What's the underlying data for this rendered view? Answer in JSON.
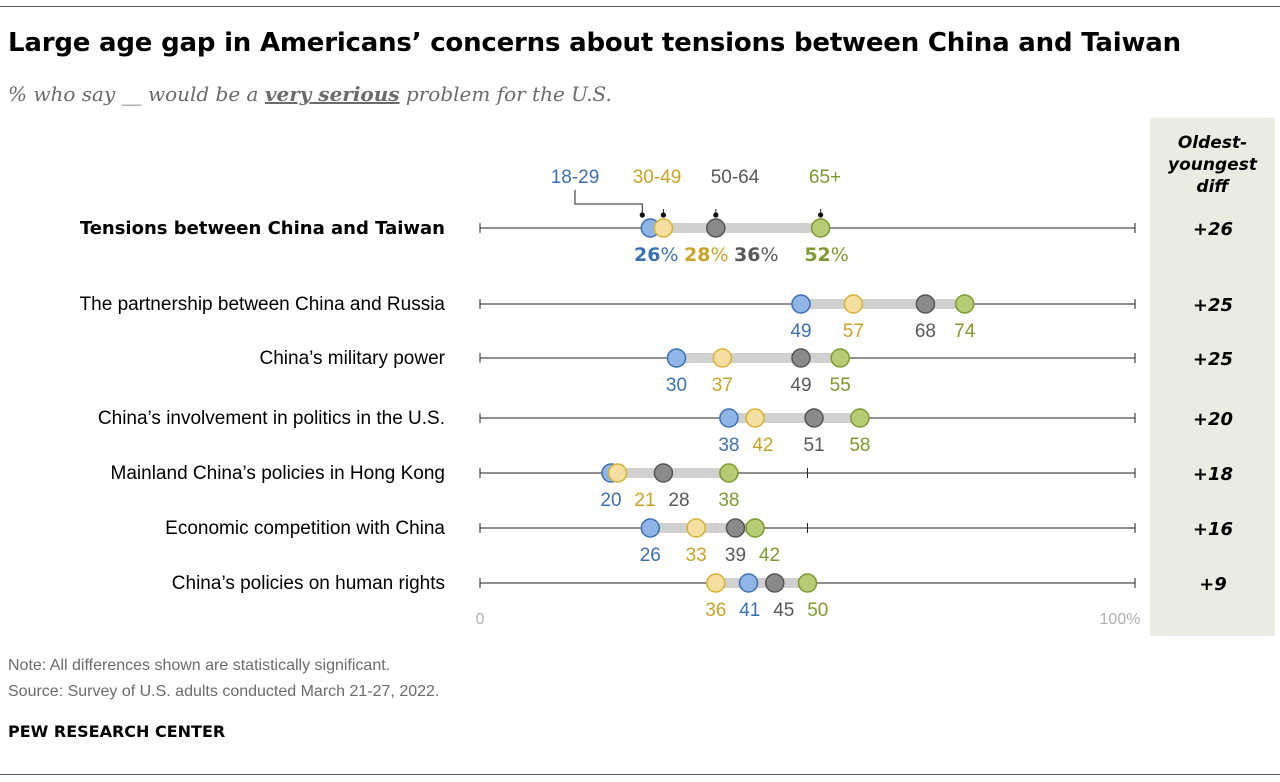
{
  "title": "Large age gap in Americans’ concerns about tensions between China and Taiwan",
  "subtitle": {
    "before": "% who say __ would be a ",
    "emphasis": "very serious",
    "after": " problem for the U.S."
  },
  "diff_header": [
    "Oldest-",
    "youngest",
    "diff"
  ],
  "note": "Note: All differences shown are statistically significant.",
  "source": "Source: Survey of U.S. adults conducted March 21-27, 2022.",
  "brand": "PEW RESEARCH CENTER",
  "chart_data": {
    "type": "dot",
    "xlim": [
      0,
      100
    ],
    "tick_labels": [
      "0",
      "100%"
    ],
    "percent_suffix": "%",
    "groups": [
      {
        "key": "18-29",
        "name": "18-29",
        "fill": "#8fb6e6",
        "stroke": "#3b70b5",
        "label": "#3b70b5"
      },
      {
        "key": "30-49",
        "name": "30-49",
        "fill": "#f5dfa0",
        "stroke": "#d8b232",
        "label": "#c9a227"
      },
      {
        "key": "50-64",
        "name": "50-64",
        "fill": "#8a8a8a",
        "stroke": "#555555",
        "label": "#595959"
      },
      {
        "key": "65+",
        "name": "65+",
        "fill": "#b6cc74",
        "stroke": "#7c9a2e",
        "label": "#7c9a2e"
      }
    ],
    "rows": [
      {
        "label": "Tensions between China and Taiwan",
        "bold": true,
        "values": {
          "18-29": 26,
          "30-49": 28,
          "50-64": 36,
          "65+": 52
        },
        "diff": "+26"
      },
      {
        "label": "The partnership between China and Russia",
        "values": {
          "18-29": 49,
          "30-49": 57,
          "50-64": 68,
          "65+": 74
        },
        "diff": "+25"
      },
      {
        "label": "China’s military power",
        "values": {
          "18-29": 30,
          "30-49": 37,
          "50-64": 49,
          "65+": 55
        },
        "diff": "+25"
      },
      {
        "label": "China’s involvement in politics in the U.S.",
        "values": {
          "18-29": 38,
          "30-49": 42,
          "50-64": 51,
          "65+": 58
        },
        "diff": "+20"
      },
      {
        "label": "Mainland China’s policies in Hong Kong",
        "values": {
          "18-29": 20,
          "30-49": 21,
          "50-64": 28,
          "65+": 38
        },
        "diff": "+18"
      },
      {
        "label": "Economic competition with China",
        "values": {
          "18-29": 26,
          "30-49": 33,
          "50-64": 39,
          "65+": 42
        },
        "diff": "+16"
      },
      {
        "label": "China’s policies on human rights",
        "values": {
          "18-29": 41,
          "30-49": 36,
          "50-64": 45,
          "65+": 50
        },
        "diff": "+9"
      }
    ]
  }
}
